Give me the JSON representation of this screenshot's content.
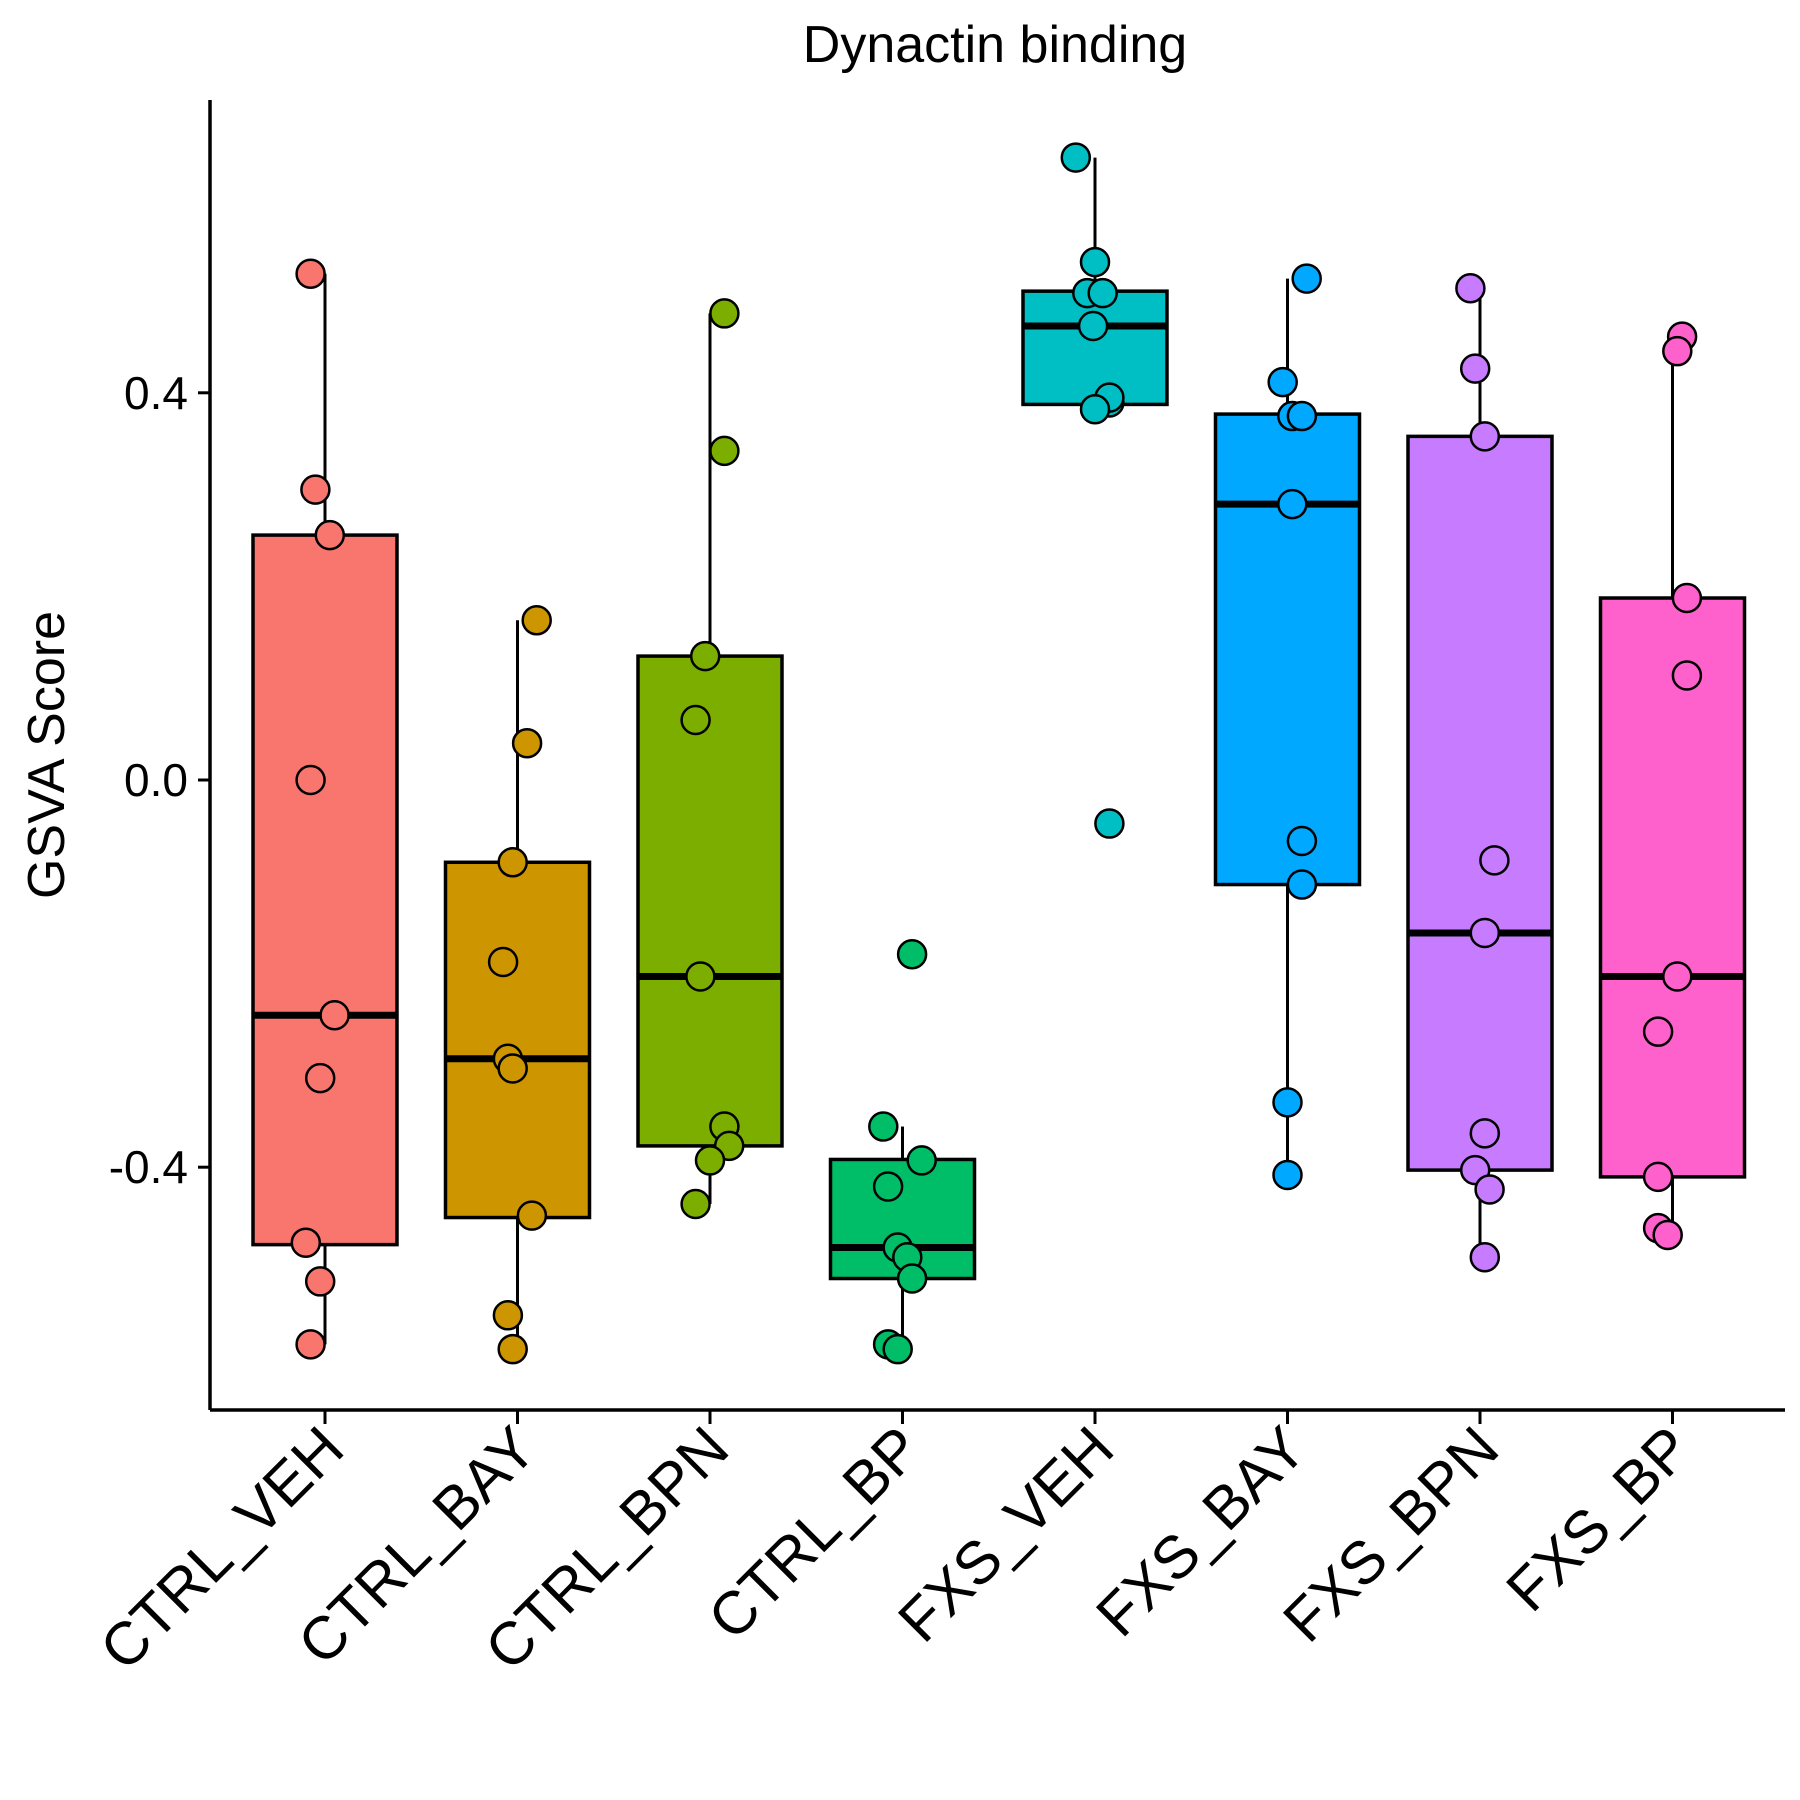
{
  "chart_data": {
    "type": "boxplot",
    "title": "Dynactin binding",
    "xlabel": "",
    "ylabel": "GSVA Score",
    "ylim": [
      -0.65,
      0.7
    ],
    "yticks": [
      -0.4,
      0.0,
      0.4
    ],
    "ytick_labels": [
      "-0.4",
      "0.0",
      "0.4"
    ],
    "grid": false,
    "legend": "none",
    "categories": [
      "CTRL_VEH",
      "CTRL_BAY",
      "CTRL_BPN",
      "CTRL_BP",
      "FXS_VEH",
      "FXS_BAY",
      "FXS_BPN",
      "FXS_BP"
    ],
    "colors": [
      "#F8766D",
      "#CD9600",
      "#7CAE00",
      "#00BE67",
      "#00BFC4",
      "#00A9FF",
      "#C77CFF",
      "#FF61CC"
    ],
    "boxes": [
      {
        "q1": -0.48,
        "median": -0.243,
        "q3": 0.253,
        "whisker_low": -0.583,
        "whisker_high": 0.523
      },
      {
        "q1": -0.452,
        "median": -0.288,
        "q3": -0.085,
        "whisker_low": -0.588,
        "whisker_high": 0.165
      },
      {
        "q1": -0.378,
        "median": -0.203,
        "q3": 0.128,
        "whisker_low": -0.438,
        "whisker_high": 0.482
      },
      {
        "q1": -0.515,
        "median": -0.483,
        "q3": -0.392,
        "whisker_low": -0.588,
        "whisker_high": -0.358
      },
      {
        "q1": 0.388,
        "median": 0.469,
        "q3": 0.505,
        "whisker_low": 0.388,
        "whisker_high": 0.643
      },
      {
        "q1": -0.108,
        "median": 0.285,
        "q3": 0.378,
        "whisker_low": -0.408,
        "whisker_high": 0.518
      },
      {
        "q1": -0.403,
        "median": -0.158,
        "q3": 0.355,
        "whisker_low": -0.493,
        "whisker_high": 0.508
      },
      {
        "q1": -0.41,
        "median": -0.203,
        "q3": 0.188,
        "whisker_low": -0.463,
        "whisker_high": 0.455
      }
    ],
    "points": [
      [
        [
          -0.15,
          0.523
        ],
        [
          -0.1,
          0.3
        ],
        [
          0.05,
          0.253
        ],
        [
          -0.15,
          0.0
        ],
        [
          0.1,
          -0.243
        ],
        [
          -0.05,
          -0.308
        ],
        [
          -0.2,
          -0.478
        ],
        [
          -0.05,
          -0.518
        ],
        [
          -0.15,
          -0.583
        ]
      ],
      [
        [
          0.2,
          0.165
        ],
        [
          0.1,
          0.038
        ],
        [
          -0.05,
          -0.085
        ],
        [
          -0.15,
          -0.188
        ],
        [
          -0.1,
          -0.288
        ],
        [
          -0.05,
          -0.298
        ],
        [
          0.15,
          -0.45
        ],
        [
          -0.1,
          -0.553
        ],
        [
          -0.05,
          -0.588
        ]
      ],
      [
        [
          0.15,
          0.482
        ],
        [
          0.15,
          0.34
        ],
        [
          -0.05,
          0.128
        ],
        [
          -0.15,
          0.062
        ],
        [
          -0.1,
          -0.203
        ],
        [
          0.15,
          -0.358
        ],
        [
          0.2,
          -0.378
        ],
        [
          0.0,
          -0.393
        ],
        [
          -0.15,
          -0.438
        ]
      ],
      [
        [
          0.1,
          -0.18
        ],
        [
          -0.2,
          -0.358
        ],
        [
          0.2,
          -0.393
        ],
        [
          -0.15,
          -0.42
        ],
        [
          -0.05,
          -0.483
        ],
        [
          0.05,
          -0.493
        ],
        [
          0.1,
          -0.515
        ],
        [
          -0.15,
          -0.583
        ],
        [
          -0.05,
          -0.588
        ]
      ],
      [
        [
          -0.2,
          0.643
        ],
        [
          0.0,
          0.535
        ],
        [
          -0.08,
          0.503
        ],
        [
          0.08,
          0.503
        ],
        [
          -0.02,
          0.469
        ],
        [
          0.15,
          0.39
        ],
        [
          0.15,
          0.395
        ],
        [
          0.0,
          0.383
        ],
        [
          0.15,
          -0.045
        ]
      ],
      [
        [
          0.2,
          0.518
        ],
        [
          -0.05,
          0.411
        ],
        [
          0.05,
          0.376
        ],
        [
          0.15,
          0.376
        ],
        [
          0.05,
          0.285
        ],
        [
          0.15,
          -0.063
        ],
        [
          0.15,
          -0.108
        ],
        [
          0.0,
          -0.333
        ],
        [
          0.0,
          -0.408
        ]
      ],
      [
        [
          -0.1,
          0.508
        ],
        [
          -0.05,
          0.425
        ],
        [
          0.05,
          0.355
        ],
        [
          0.15,
          -0.083
        ],
        [
          0.05,
          -0.158
        ],
        [
          0.05,
          -0.365
        ],
        [
          -0.05,
          -0.403
        ],
        [
          0.1,
          -0.423
        ],
        [
          0.05,
          -0.493
        ]
      ],
      [
        [
          0.1,
          0.458
        ],
        [
          0.05,
          0.443
        ],
        [
          0.15,
          0.188
        ],
        [
          0.15,
          0.108
        ],
        [
          0.05,
          -0.203
        ],
        [
          -0.15,
          -0.26
        ],
        [
          -0.15,
          -0.41
        ],
        [
          -0.15,
          -0.463
        ],
        [
          -0.05,
          -0.47
        ]
      ]
    ]
  }
}
